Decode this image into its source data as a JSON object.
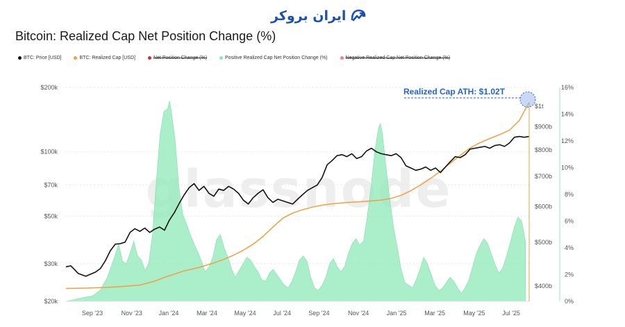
{
  "logo": {
    "text": "ایران بروکر",
    "color": "#1e50b4"
  },
  "chart_data": {
    "type": "area",
    "title": "Bitcoin: Realized Cap Net Position Change (%)",
    "watermark": "glassnode",
    "legend": [
      {
        "label": "BTC: Price [USD]",
        "color": "#111111",
        "enabled": true
      },
      {
        "label": "BTC: Realized Cap [USD]",
        "color": "#f0a040",
        "enabled": true
      },
      {
        "label": "Net Position Change (%)",
        "color": "#d03030",
        "enabled": false
      },
      {
        "label": "Positive Realized Cap Net Position Change (%)",
        "color": "#8fe8b8",
        "enabled": true
      },
      {
        "label": "Negative Realized Cap Net Position Change (%)",
        "color": "#f08080",
        "enabled": false
      }
    ],
    "x_ticks": [
      "Sep '23",
      "Nov '23",
      "Jan '24",
      "Mar '24",
      "May '24",
      "Jul '24",
      "Sep '24",
      "Nov '24",
      "Jan '25",
      "Mar '25",
      "May '25",
      "Jul '25"
    ],
    "left_axis": {
      "scale": "log",
      "ticks": [
        {
          "label": "$200k",
          "value": 200000
        },
        {
          "label": "$100k",
          "value": 100000
        },
        {
          "label": "$70k",
          "value": 70000
        },
        {
          "label": "$50k",
          "value": 50000
        },
        {
          "label": "$30k",
          "value": 30000
        },
        {
          "label": "$20k",
          "value": 20000
        }
      ],
      "range": [
        20000,
        200000
      ]
    },
    "mid_axis": {
      "scale": "log",
      "ticks": [
        {
          "label": "$1t",
          "value": 1000
        },
        {
          "label": "$900b",
          "value": 900
        },
        {
          "label": "$800b",
          "value": 800
        },
        {
          "label": "$700b",
          "value": 700
        },
        {
          "label": "$600b",
          "value": 600
        },
        {
          "label": "$500b",
          "value": 500
        },
        {
          "label": "$400b",
          "value": 400
        }
      ],
      "range": [
        370,
        1100
      ]
    },
    "right_axis": {
      "ticks": [
        "16%",
        "14%",
        "12%",
        "10%",
        "8%",
        "6%",
        "4%",
        "2%",
        "0%"
      ],
      "range": [
        0,
        16
      ]
    },
    "annotation": {
      "text": "Realized Cap ATH: $1.02T",
      "value": 1020
    },
    "series": [
      {
        "name": "BTC: Price [USD]",
        "axis": "left",
        "color": "#111111",
        "points": [
          [
            0,
            29000
          ],
          [
            2,
            29300
          ],
          [
            5,
            27000
          ],
          [
            8,
            26200
          ],
          [
            10,
            26800
          ],
          [
            12,
            27400
          ],
          [
            14,
            28500
          ],
          [
            16,
            31000
          ],
          [
            18,
            34500
          ],
          [
            20,
            37000
          ],
          [
            22,
            37200
          ],
          [
            24,
            37800
          ],
          [
            26,
            42000
          ],
          [
            28,
            43700
          ],
          [
            30,
            42500
          ],
          [
            32,
            44000
          ],
          [
            34,
            42000
          ],
          [
            36,
            43500
          ],
          [
            38,
            44500
          ],
          [
            40,
            43000
          ],
          [
            42,
            48000
          ],
          [
            44,
            52000
          ],
          [
            46,
            57500
          ],
          [
            48,
            63000
          ],
          [
            50,
            68000
          ],
          [
            52,
            71000
          ],
          [
            54,
            66000
          ],
          [
            56,
            69000
          ],
          [
            58,
            64000
          ],
          [
            60,
            62000
          ],
          [
            62,
            67000
          ],
          [
            64,
            66000
          ],
          [
            66,
            69000
          ],
          [
            68,
            67000
          ],
          [
            70,
            64000
          ],
          [
            72,
            59500
          ],
          [
            74,
            57000
          ],
          [
            76,
            61000
          ],
          [
            78,
            64000
          ],
          [
            80,
            66500
          ],
          [
            82,
            61000
          ],
          [
            84,
            58000
          ],
          [
            86,
            60000
          ],
          [
            88,
            59000
          ],
          [
            90,
            58000
          ],
          [
            92,
            57000
          ],
          [
            94,
            60000
          ],
          [
            96,
            63000
          ],
          [
            98,
            66000
          ],
          [
            100,
            68000
          ],
          [
            102,
            70000
          ],
          [
            104,
            76000
          ],
          [
            106,
            87000
          ],
          [
            108,
            91000
          ],
          [
            110,
            96000
          ],
          [
            112,
            97000
          ],
          [
            114,
            95000
          ],
          [
            116,
            98000
          ],
          [
            118,
            93000
          ],
          [
            120,
            95000
          ],
          [
            122,
            101000
          ],
          [
            124,
            104000
          ],
          [
            126,
            100000
          ],
          [
            128,
            98000
          ],
          [
            130,
            97000
          ],
          [
            132,
            96000
          ],
          [
            134,
            98000
          ],
          [
            136,
            94000
          ],
          [
            138,
            86000
          ],
          [
            140,
            84000
          ],
          [
            142,
            82000
          ],
          [
            144,
            83000
          ],
          [
            146,
            85000
          ],
          [
            148,
            82000
          ],
          [
            150,
            84000
          ],
          [
            152,
            80000
          ],
          [
            154,
            85000
          ],
          [
            156,
            90000
          ],
          [
            158,
            95000
          ],
          [
            160,
            94000
          ],
          [
            162,
            97000
          ],
          [
            164,
            103000
          ],
          [
            166,
            104000
          ],
          [
            168,
            105000
          ],
          [
            170,
            106000
          ],
          [
            172,
            104000
          ],
          [
            174,
            107000
          ],
          [
            176,
            108000
          ],
          [
            178,
            106000
          ],
          [
            180,
            110000
          ],
          [
            182,
            117000
          ],
          [
            184,
            118000
          ],
          [
            186,
            117000
          ],
          [
            188,
            118000
          ]
        ]
      },
      {
        "name": "BTC: Realized Cap [USD]",
        "axis": "mid",
        "color": "#f0a040",
        "points": [
          [
            0,
            395
          ],
          [
            10,
            396
          ],
          [
            20,
            398
          ],
          [
            30,
            402
          ],
          [
            36,
            410
          ],
          [
            40,
            418
          ],
          [
            44,
            425
          ],
          [
            48,
            432
          ],
          [
            52,
            437
          ],
          [
            56,
            443
          ],
          [
            60,
            450
          ],
          [
            64,
            458
          ],
          [
            68,
            468
          ],
          [
            72,
            480
          ],
          [
            76,
            495
          ],
          [
            80,
            515
          ],
          [
            84,
            540
          ],
          [
            88,
            565
          ],
          [
            92,
            580
          ],
          [
            96,
            590
          ],
          [
            100,
            598
          ],
          [
            104,
            604
          ],
          [
            108,
            608
          ],
          [
            112,
            611
          ],
          [
            116,
            613
          ],
          [
            120,
            615
          ],
          [
            124,
            617
          ],
          [
            128,
            620
          ],
          [
            132,
            625
          ],
          [
            136,
            635
          ],
          [
            140,
            650
          ],
          [
            144,
            670
          ],
          [
            148,
            692
          ],
          [
            152,
            718
          ],
          [
            156,
            748
          ],
          [
            160,
            778
          ],
          [
            164,
            808
          ],
          [
            168,
            830
          ],
          [
            172,
            848
          ],
          [
            176,
            865
          ],
          [
            180,
            885
          ],
          [
            184,
            930
          ],
          [
            188,
            1020
          ]
        ]
      },
      {
        "name": "Positive Realized Cap Net Position Change (%)",
        "axis": "right",
        "color": "#8fe8b8",
        "points": [
          [
            0,
            0
          ],
          [
            10,
            0.3
          ],
          [
            14,
            0.4
          ],
          [
            18,
            0.8
          ],
          [
            22,
            1.8
          ],
          [
            24,
            2.6
          ],
          [
            26,
            3.4
          ],
          [
            28,
            4.3
          ],
          [
            30,
            3.0
          ],
          [
            32,
            2.8
          ],
          [
            34,
            3.6
          ],
          [
            36,
            4.5
          ],
          [
            38,
            3.4
          ],
          [
            40,
            3.1
          ],
          [
            42,
            2.3
          ],
          [
            44,
            2.9
          ],
          [
            46,
            5.0
          ],
          [
            48,
            9.0
          ],
          [
            50,
            12.5
          ],
          [
            52,
            14.2
          ],
          [
            54,
            14.4
          ],
          [
            55,
            15.0
          ],
          [
            56,
            14.2
          ],
          [
            58,
            12.0
          ],
          [
            60,
            8.5
          ],
          [
            62,
            6.5
          ],
          [
            64,
            5.8
          ],
          [
            66,
            5.0
          ],
          [
            68,
            4.3
          ],
          [
            70,
            3.7
          ],
          [
            72,
            3.0
          ],
          [
            74,
            2.2
          ],
          [
            76,
            2.6
          ],
          [
            78,
            3.3
          ],
          [
            80,
            4.6
          ],
          [
            82,
            5.0
          ],
          [
            84,
            4.0
          ],
          [
            86,
            3.3
          ],
          [
            88,
            2.4
          ],
          [
            90,
            1.8
          ],
          [
            92,
            2.3
          ],
          [
            94,
            2.8
          ],
          [
            96,
            3.3
          ],
          [
            98,
            3.1
          ],
          [
            100,
            2.6
          ],
          [
            102,
            2.2
          ],
          [
            104,
            1.6
          ],
          [
            106,
            1.5
          ],
          [
            108,
            2.1
          ],
          [
            110,
            2.4
          ],
          [
            112,
            2.0
          ],
          [
            114,
            1.6
          ],
          [
            116,
            1.2
          ],
          [
            118,
            1.0
          ],
          [
            120,
            1.5
          ],
          [
            122,
            2.2
          ],
          [
            124,
            3.1
          ],
          [
            126,
            3.4
          ],
          [
            128,
            3.0
          ],
          [
            130,
            1.8
          ],
          [
            132,
            1.0
          ],
          [
            134,
            0.8
          ],
          [
            136,
            1.2
          ],
          [
            138,
            1.8
          ],
          [
            140,
            2.8
          ],
          [
            142,
            3.2
          ],
          [
            144,
            2.6
          ],
          [
            146,
            2.2
          ],
          [
            148,
            2.6
          ],
          [
            150,
            3.6
          ],
          [
            152,
            4.3
          ],
          [
            154,
            4.7
          ],
          [
            156,
            4.2
          ],
          [
            158,
            4.5
          ],
          [
            160,
            6.3
          ],
          [
            162,
            8.5
          ],
          [
            164,
            11.2
          ],
          [
            166,
            13.0
          ],
          [
            167,
            13.3
          ],
          [
            168,
            12.6
          ],
          [
            170,
            10.0
          ],
          [
            172,
            7.6
          ],
          [
            174,
            5.5
          ],
          [
            176,
            4.0
          ],
          [
            178,
            2.4
          ],
          [
            180,
            1.4
          ],
          [
            182,
            1.2
          ],
          [
            184,
            1.0
          ],
          [
            186,
            1.6
          ],
          [
            188,
            2.4
          ],
          [
            190,
            3.3
          ],
          [
            192,
            2.8
          ],
          [
            194,
            2.0
          ],
          [
            196,
            1.2
          ],
          [
            198,
            0.8
          ],
          [
            200,
            1.0
          ],
          [
            202,
            1.4
          ],
          [
            204,
            1.8
          ],
          [
            206,
            1.5
          ],
          [
            208,
            1.0
          ],
          [
            210,
            0.6
          ],
          [
            212,
            1.0
          ],
          [
            214,
            1.6
          ],
          [
            216,
            2.6
          ],
          [
            218,
            3.6
          ],
          [
            220,
            4.2
          ],
          [
            222,
            4.7
          ],
          [
            224,
            4.3
          ],
          [
            226,
            3.5
          ],
          [
            228,
            2.7
          ],
          [
            230,
            2.1
          ],
          [
            232,
            2.5
          ],
          [
            234,
            3.4
          ],
          [
            236,
            4.4
          ],
          [
            238,
            5.5
          ],
          [
            240,
            6.3
          ],
          [
            242,
            6.0
          ],
          [
            244,
            4.5
          ]
        ]
      }
    ]
  }
}
